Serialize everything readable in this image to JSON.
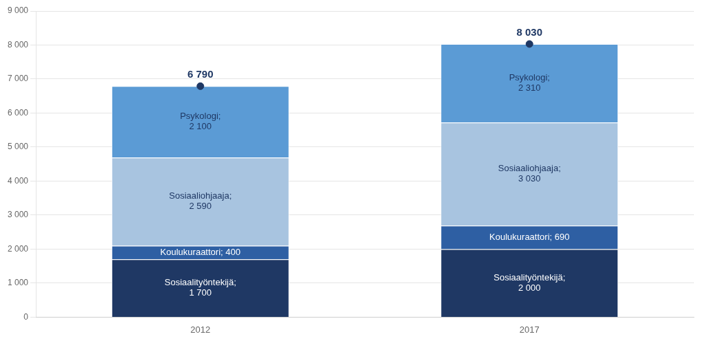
{
  "chart_data": {
    "type": "bar",
    "stacked": true,
    "data_labels": true,
    "grid": true,
    "categories": [
      "2012",
      "2017"
    ],
    "series": [
      {
        "name": "Sosiaalityöntekijä",
        "color": "#1f3864",
        "values": [
          1700,
          2000
        ],
        "value_labels": [
          "Sosiaalityöntekijä;\n1 700",
          "Sosiaalityöntekijä;\n2 000"
        ]
      },
      {
        "name": "Koulukuraattori",
        "color": "#2e5fa3",
        "values": [
          400,
          690
        ],
        "value_labels": [
          "Koulukuraattori; 400",
          "Koulukuraattori; 690"
        ]
      },
      {
        "name": "Sosiaaliohjaaja",
        "color": "#a8c4e0",
        "values": [
          2590,
          3030
        ],
        "value_labels": [
          "Sosiaaliohjaaja;\n2 590",
          "Sosiaaliohjaaja;\n3 030"
        ]
      },
      {
        "name": "Psykologi",
        "color": "#5b9bd5",
        "values": [
          2100,
          2310
        ],
        "value_labels": [
          "Psykologi;\n2 100",
          "Psykologi;\n2 310"
        ]
      }
    ],
    "totals": {
      "values": [
        6790,
        8030
      ],
      "value_labels": [
        "6 790",
        "8 030"
      ],
      "color": "#1f3864",
      "marker": "circle"
    },
    "ylim": [
      0,
      9000
    ],
    "yticks": [
      0,
      {
        "value": 1000,
        "label": "1 000"
      },
      {
        "value": 2000,
        "label": "2 000"
      },
      {
        "value": 3000,
        "label": "3 000"
      },
      {
        "value": 4000,
        "label": "4 000"
      },
      {
        "value": 5000,
        "label": "5 000"
      },
      {
        "value": 6000,
        "label": "6 000"
      },
      {
        "value": 7000,
        "label": "7 000"
      },
      {
        "value": 8000,
        "label": "8 000"
      },
      {
        "value": 9000,
        "label": "9 000"
      }
    ]
  }
}
